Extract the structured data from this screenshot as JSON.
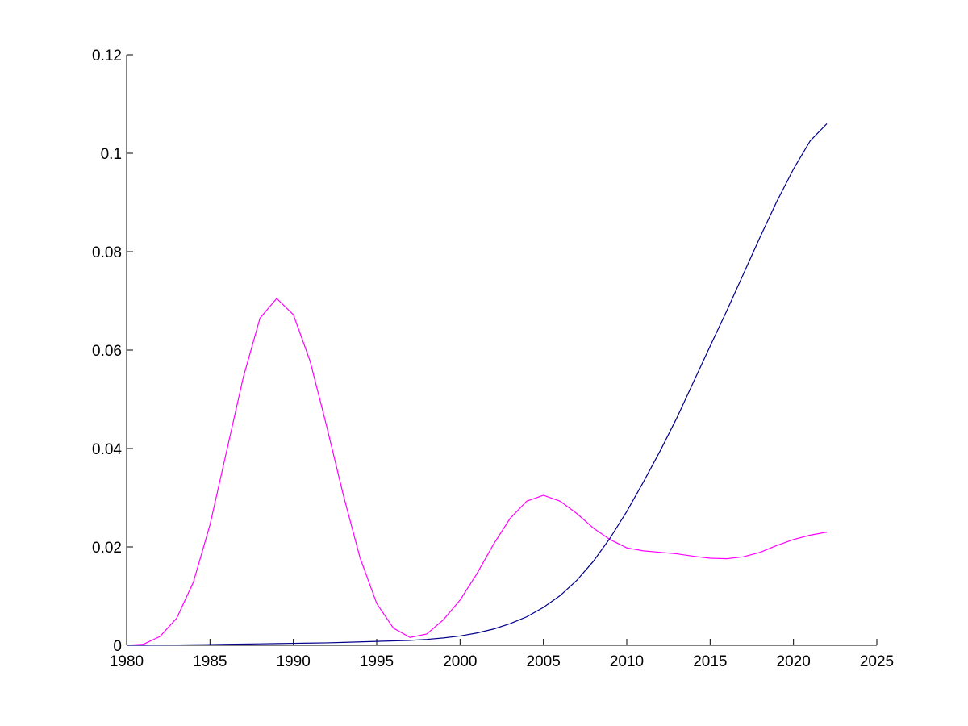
{
  "chart_data": {
    "type": "line",
    "title": "",
    "xlabel": "",
    "ylabel": "",
    "xlim": [
      1980,
      2025
    ],
    "ylim": [
      0,
      0.12
    ],
    "grid": false,
    "legend": "none",
    "x_ticks": [
      "1980",
      "1985",
      "1990",
      "1995",
      "2000",
      "2005",
      "2010",
      "2015",
      "2020",
      "2025"
    ],
    "y_ticks": [
      "0",
      "0.02",
      "0.04",
      "0.06",
      "0.08",
      "0.1",
      "0.12"
    ],
    "series": [
      {
        "color": "#ff00ff",
        "x": [
          1980,
          1981,
          1982,
          1983,
          1984,
          1985,
          1986,
          1987,
          1988,
          1989,
          1990,
          1991,
          1992,
          1993,
          1994,
          1995,
          1996,
          1997,
          1998,
          1999,
          2000,
          2001,
          2002,
          2003,
          2004,
          2005,
          2006,
          2007,
          2008,
          2009,
          2010,
          2011,
          2012,
          2013,
          2014,
          2015,
          2016,
          2017,
          2018,
          2019,
          2020,
          2021,
          2022
        ],
        "y": [
          0,
          0.0002,
          0.0018,
          0.0055,
          0.0128,
          0.0245,
          0.0395,
          0.0545,
          0.0665,
          0.0705,
          0.0672,
          0.0578,
          0.0445,
          0.0305,
          0.0178,
          0.0085,
          0.0035,
          0.0016,
          0.0023,
          0.0052,
          0.0092,
          0.0145,
          0.0205,
          0.0258,
          0.0293,
          0.0305,
          0.0293,
          0.0268,
          0.0238,
          0.0215,
          0.0198,
          0.0192,
          0.0189,
          0.0186,
          0.0181,
          0.0177,
          0.0176,
          0.018,
          0.0189,
          0.0203,
          0.0215,
          0.0224,
          0.023
        ]
      },
      {
        "color": "#00008b",
        "x": [
          1980,
          1981,
          1982,
          1983,
          1984,
          1985,
          1986,
          1987,
          1988,
          1989,
          1990,
          1991,
          1992,
          1993,
          1994,
          1995,
          1996,
          1997,
          1998,
          1999,
          2000,
          2001,
          2002,
          2003,
          2004,
          2005,
          2006,
          2007,
          2008,
          2009,
          2010,
          2011,
          2012,
          2013,
          2014,
          2015,
          2016,
          2017,
          2018,
          2019,
          2020,
          2021,
          2022
        ],
        "y": [
          0,
          0,
          3e-05,
          6e-05,
          0.0001,
          0.00014,
          0.0002,
          0.00025,
          0.0003,
          0.00035,
          0.0004,
          0.00045,
          0.0005,
          0.0006,
          0.0007,
          0.0008,
          0.0009,
          0.001,
          0.0012,
          0.0015,
          0.0019,
          0.0025,
          0.0033,
          0.0044,
          0.0058,
          0.0077,
          0.0101,
          0.0132,
          0.0171,
          0.0218,
          0.0272,
          0.0332,
          0.0395,
          0.0462,
          0.0535,
          0.0608,
          0.068,
          0.0755,
          0.083,
          0.0902,
          0.0968,
          0.1025,
          0.106
        ]
      }
    ]
  }
}
